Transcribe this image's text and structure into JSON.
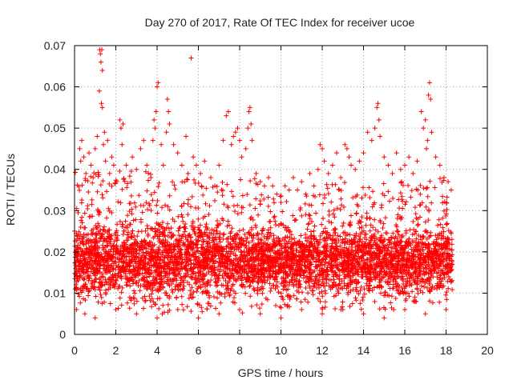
{
  "chart_data": {
    "type": "scatter",
    "title": "Day 270 of 2017, Rate Of TEC Index for receiver ucoe",
    "xlabel": "GPS time / hours",
    "ylabel": "ROTI / TECUs",
    "xlim": [
      0,
      20
    ],
    "ylim": [
      0,
      0.07
    ],
    "x_ticks": [
      "0",
      "2",
      "4",
      "6",
      "8",
      "10",
      "12",
      "14",
      "16",
      "18",
      "20"
    ],
    "y_ticks": [
      "0",
      "0.01",
      "0.02",
      "0.03",
      "0.04",
      "0.05",
      "0.06",
      "0.07"
    ],
    "grid": true,
    "marker": "+",
    "color": "#ff0000",
    "x_range_of_data": [
      0,
      18.3
    ],
    "series": [
      {
        "x": [
          1.22,
          1.25,
          1.28,
          1.32,
          1.35,
          1.2,
          1.3,
          1.35,
          1.4,
          1.45,
          0.25,
          0.3,
          0.35,
          0.45,
          0.55,
          0.7,
          0.8,
          0.9,
          1.0,
          1.1,
          1.5,
          1.6,
          1.7,
          1.8,
          1.9,
          2.2,
          2.25,
          2.3,
          2.35,
          2.5,
          2.8,
          3.0,
          3.2,
          3.35,
          3.5,
          3.7,
          3.8,
          3.85,
          3.9,
          3.95,
          4.0,
          4.05,
          4.2,
          4.3,
          4.45,
          4.5,
          4.55,
          4.6,
          4.8,
          5.0,
          5.2,
          5.4,
          5.5,
          5.65,
          5.75,
          5.9,
          6.1,
          6.3,
          6.6,
          6.8,
          7.0,
          7.2,
          7.35,
          7.45,
          7.6,
          7.7,
          7.8,
          7.9,
          8.0,
          8.1,
          8.3,
          8.4,
          8.45,
          8.5,
          8.55,
          8.6,
          8.8,
          9.0,
          9.2,
          9.4,
          9.6,
          9.8,
          10.0,
          10.2,
          10.4,
          10.6,
          10.8,
          11.0,
          11.2,
          11.4,
          11.6,
          11.8,
          11.9,
          12.0,
          12.1,
          12.3,
          12.5,
          12.7,
          12.9,
          13.1,
          13.2,
          13.3,
          13.4,
          13.6,
          13.8,
          14.0,
          14.2,
          14.4,
          14.55,
          14.65,
          14.7,
          14.75,
          14.8,
          15.0,
          15.2,
          15.4,
          15.6,
          15.8,
          16.0,
          16.2,
          16.4,
          16.6,
          16.8,
          16.9,
          17.0,
          17.05,
          17.1,
          17.15,
          17.2,
          17.25,
          17.3,
          17.5,
          17.7,
          17.9,
          18.1,
          18.25,
          0.1,
          0.5,
          1.0,
          2.0,
          3.0,
          4.0,
          5.0,
          6.0,
          7.0,
          8.0,
          9.0,
          10.0,
          11.0,
          12.0,
          13.0,
          14.0,
          15.0,
          16.0,
          17.0,
          18.0
        ],
        "y": [
          0.069,
          0.068,
          0.066,
          0.069,
          0.064,
          0.059,
          0.056,
          0.055,
          0.046,
          0.049,
          0.045,
          0.042,
          0.047,
          0.043,
          0.039,
          0.044,
          0.041,
          0.038,
          0.045,
          0.048,
          0.042,
          0.047,
          0.039,
          0.043,
          0.041,
          0.052,
          0.05,
          0.046,
          0.051,
          0.041,
          0.043,
          0.04,
          0.045,
          0.047,
          0.041,
          0.038,
          0.047,
          0.052,
          0.05,
          0.054,
          0.06,
          0.061,
          0.046,
          0.041,
          0.049,
          0.057,
          0.054,
          0.051,
          0.046,
          0.044,
          0.041,
          0.048,
          0.039,
          0.067,
          0.043,
          0.041,
          0.039,
          0.042,
          0.038,
          0.036,
          0.041,
          0.047,
          0.053,
          0.054,
          0.046,
          0.048,
          0.049,
          0.05,
          0.047,
          0.043,
          0.045,
          0.05,
          0.054,
          0.055,
          0.051,
          0.047,
          0.039,
          0.037,
          0.036,
          0.038,
          0.036,
          0.034,
          0.032,
          0.036,
          0.035,
          0.038,
          0.035,
          0.037,
          0.034,
          0.039,
          0.036,
          0.04,
          0.046,
          0.045,
          0.042,
          0.039,
          0.041,
          0.044,
          0.038,
          0.046,
          0.045,
          0.043,
          0.041,
          0.04,
          0.042,
          0.044,
          0.049,
          0.047,
          0.05,
          0.055,
          0.056,
          0.052,
          0.048,
          0.043,
          0.041,
          0.039,
          0.044,
          0.04,
          0.041,
          0.043,
          0.039,
          0.042,
          0.054,
          0.05,
          0.052,
          0.045,
          0.047,
          0.058,
          0.061,
          0.057,
          0.049,
          0.043,
          0.041,
          0.038,
          0.037,
          0.035,
          0.006,
          0.005,
          0.004,
          0.006,
          0.005,
          0.004,
          0.006,
          0.004,
          0.005,
          0.006,
          0.005,
          0.004,
          0.006,
          0.005,
          0.006,
          0.005,
          0.004,
          0.006,
          0.005,
          0.006
        ]
      }
    ],
    "dense_band": {
      "segments": [
        {
          "x_start": 0.0,
          "x_end": 4.0,
          "y_min": 0.006,
          "y_max": 0.04
        },
        {
          "x_start": 4.0,
          "x_end": 9.0,
          "y_min": 0.005,
          "y_max": 0.038
        },
        {
          "x_start": 9.0,
          "x_end": 12.0,
          "y_min": 0.006,
          "y_max": 0.034
        },
        {
          "x_start": 12.0,
          "x_end": 15.5,
          "y_min": 0.006,
          "y_max": 0.037
        },
        {
          "x_start": 15.5,
          "x_end": 18.3,
          "y_min": 0.007,
          "y_max": 0.038
        }
      ],
      "center": 0.018
    }
  }
}
